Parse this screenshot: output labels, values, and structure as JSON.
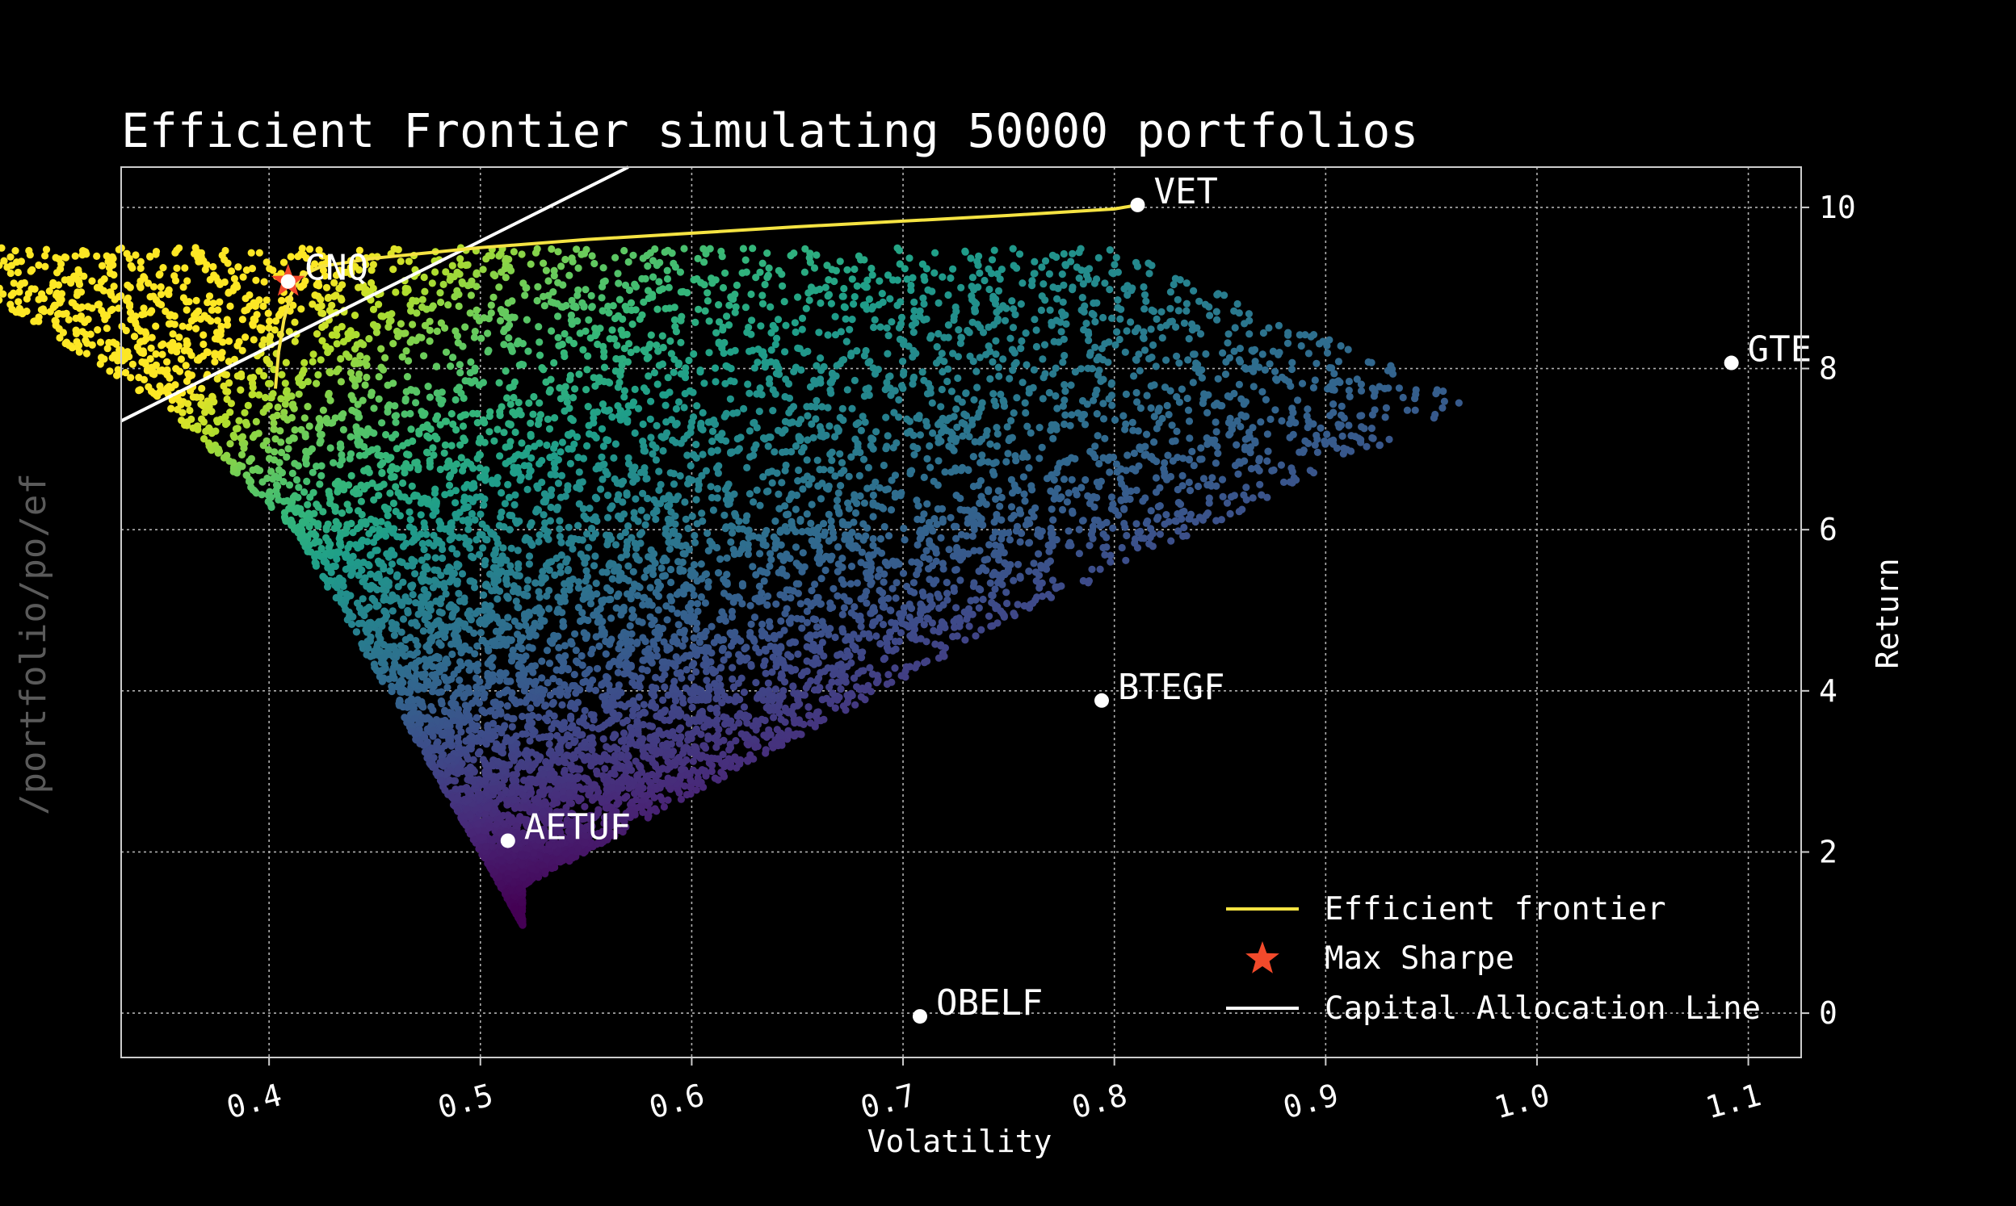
{
  "chart_data": {
    "type": "scatter",
    "title": "Efficient Frontier simulating 50000 portfolios",
    "xlabel": "Volatility",
    "ylabel": "Return",
    "xlim": [
      0.33,
      1.125
    ],
    "ylim": [
      -0.55,
      10.5
    ],
    "x_ticks": [
      0.4,
      0.5,
      0.6,
      0.7,
      0.8,
      0.9,
      1.0,
      1.1
    ],
    "x_tick_labels": [
      "0.4",
      "0.5",
      "0.6",
      "0.7",
      "0.8",
      "0.9",
      "1.0",
      "1.1"
    ],
    "y_ticks": [
      0,
      2,
      4,
      6,
      8,
      10
    ],
    "y_tick_labels": [
      "0",
      "2",
      "4",
      "6",
      "8",
      "10"
    ],
    "y_axis_side": "right",
    "grid": true,
    "colormap": "viridis",
    "simulated_portfolio_count": 50000,
    "assets": [
      {
        "name": "VET",
        "x": 0.811,
        "y": 10.03
      },
      {
        "name": "CNQ",
        "x": 0.409,
        "y": 9.08
      },
      {
        "name": "GTE",
        "x": 1.092,
        "y": 8.07
      },
      {
        "name": "BTEGF",
        "x": 0.794,
        "y": 3.88
      },
      {
        "name": "AETUF",
        "x": 0.513,
        "y": 2.14
      },
      {
        "name": "OBELF",
        "x": 0.708,
        "y": -0.04
      }
    ],
    "efficient_frontier": {
      "name": "Efficient frontier",
      "color": "#f5e342",
      "x": [
        0.403,
        0.4045,
        0.407,
        0.41,
        0.415,
        0.425,
        0.45,
        0.5,
        0.55,
        0.6,
        0.65,
        0.7,
        0.75,
        0.8,
        0.811
      ],
      "y": [
        7.75,
        8.2,
        8.6,
        8.9,
        9.15,
        9.27,
        9.37,
        9.5,
        9.6,
        9.68,
        9.76,
        9.83,
        9.9,
        9.98,
        10.03
      ]
    },
    "max_sharpe": {
      "name": "Max Sharpe",
      "x": 0.409,
      "y": 9.08,
      "color": "#f24a2b"
    },
    "capital_allocation_line": {
      "name": "Capital Allocation Line",
      "color": "#ffffff",
      "x": [
        0.33,
        0.57
      ],
      "y": [
        7.35,
        10.5
      ]
    },
    "legend_position": "lower-right",
    "legend": [
      "Efficient frontier",
      "Max Sharpe",
      "Capital Allocation Line"
    ]
  },
  "watermark": "/portfolio/po/ef",
  "colors": {
    "background": "#000000",
    "grid": "#b0b0b0",
    "axes": "#cccccc"
  }
}
